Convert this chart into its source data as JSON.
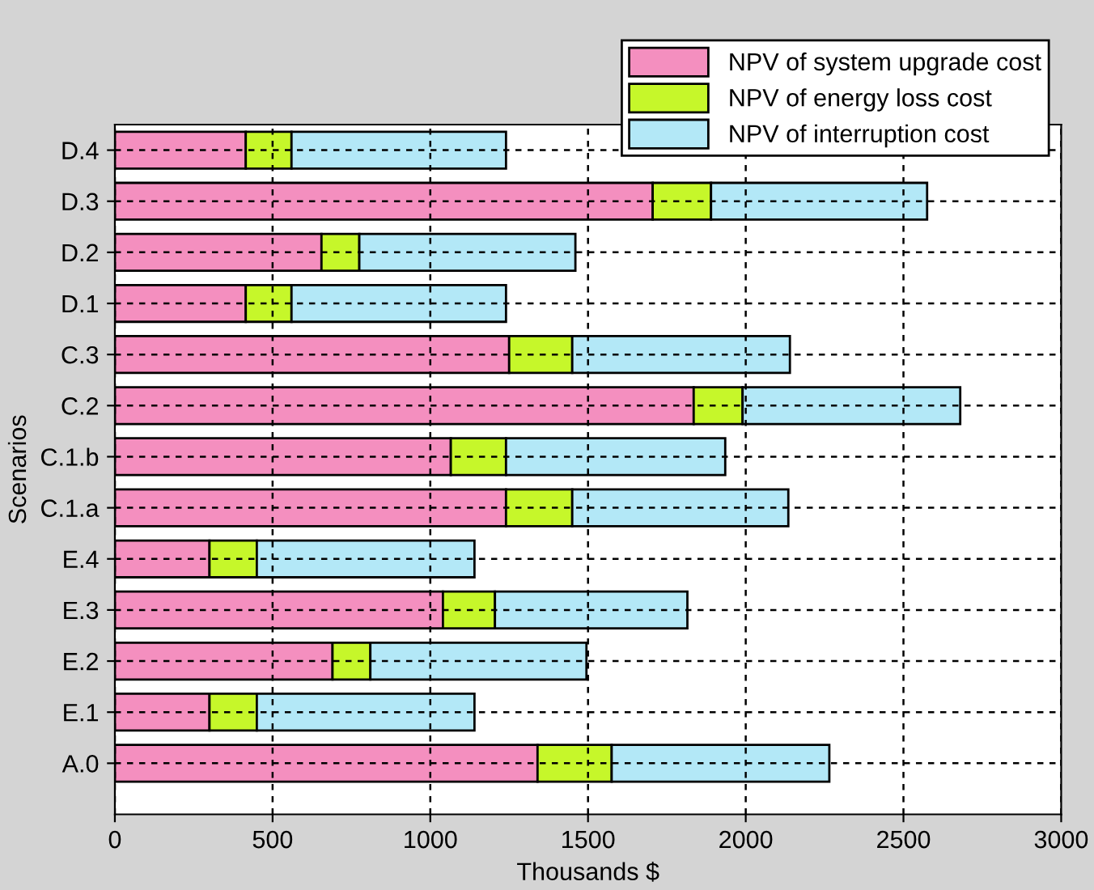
{
  "chart_data": {
    "type": "bar",
    "orientation": "horizontal",
    "stacked": true,
    "xlabel": "Thousands $",
    "ylabel": "Scenarios",
    "categories": [
      "D.4",
      "D.3",
      "D.2",
      "D.1",
      "C.3",
      "C.2",
      "C.1.b",
      "C.1.a",
      "E.4",
      "E.3",
      "E.2",
      "E.1",
      "A.0"
    ],
    "series": [
      {
        "name": "NPV of system upgrade cost",
        "color": "#f48fbf",
        "values": [
          415,
          1705,
          655,
          415,
          1250,
          1835,
          1065,
          1240,
          300,
          1040,
          690,
          300,
          1340
        ]
      },
      {
        "name": "NPV of energy loss cost",
        "color": "#c6f72a",
        "values": [
          145,
          185,
          120,
          145,
          200,
          155,
          175,
          210,
          150,
          165,
          120,
          150,
          235
        ]
      },
      {
        "name": "NPV of interruption cost",
        "color": "#b3e8f7",
        "values": [
          680,
          685,
          685,
          680,
          690,
          690,
          695,
          685,
          690,
          610,
          685,
          690,
          690
        ]
      }
    ],
    "xlim": [
      0,
      3000
    ],
    "xticks": [
      0,
      500,
      1000,
      1500,
      2000,
      2500,
      3000
    ],
    "grid": true,
    "legend": "top right"
  }
}
